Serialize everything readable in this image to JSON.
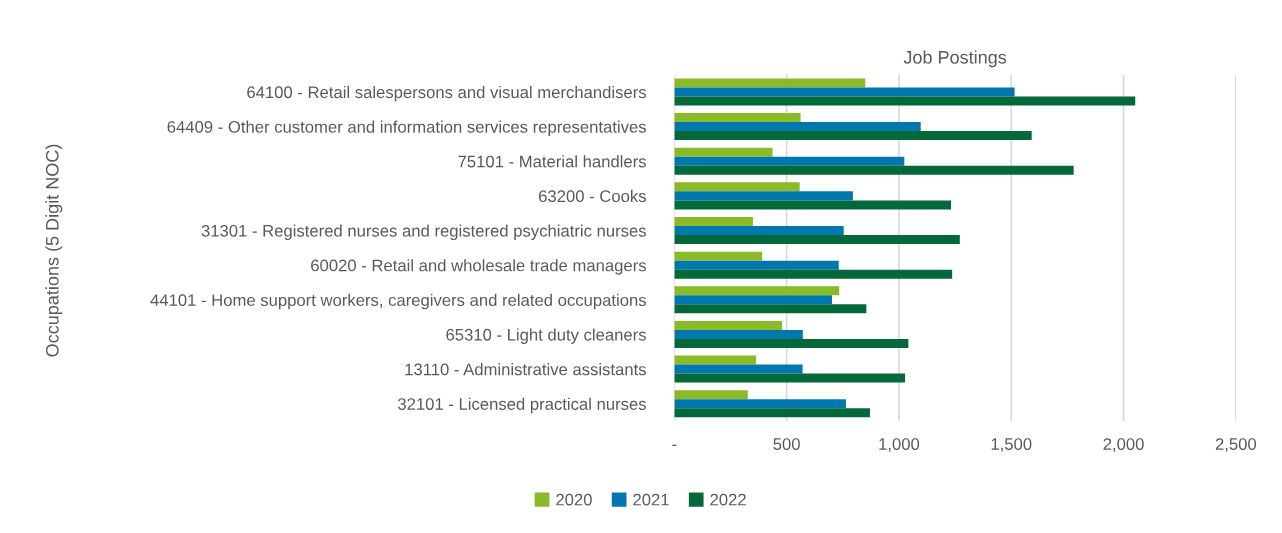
{
  "chart_data": {
    "type": "bar",
    "orientation": "horizontal",
    "xlabel": "Job Postings",
    "ylabel": "Occupations (5 Digit NOC)",
    "categories": [
      "64100 - Retail salespersons and visual merchandisers",
      "64409 - Other customer and information services representatives",
      "75101 - Material handlers",
      "63200 - Cooks",
      "31301 - Registered nurses and registered psychiatric nurses",
      "60020 - Retail and wholesale trade managers",
      "44101 - Home support workers, caregivers and related occupations",
      "65310 - Light duty cleaners",
      "13110 - Administrative assistants",
      "32101 - Licensed practical nurses"
    ],
    "series": [
      {
        "name": "2020",
        "color": "#8aba28",
        "values": [
          850,
          562,
          437,
          558,
          350,
          391,
          734,
          480,
          364,
          327
        ]
      },
      {
        "name": "2021",
        "color": "#0078ae",
        "values": [
          1515,
          1097,
          1024,
          795,
          754,
          732,
          702,
          572,
          571,
          764
        ]
      },
      {
        "name": "2022",
        "color": "#04693a",
        "values": [
          2052,
          1591,
          1778,
          1232,
          1271,
          1237,
          855,
          1042,
          1027,
          871
        ]
      }
    ],
    "xlim": [
      0,
      2500
    ],
    "xticks": [
      {
        "value": 0,
        "label": "-"
      },
      {
        "value": 500,
        "label": "500"
      },
      {
        "value": 1000,
        "label": "1,000"
      },
      {
        "value": 1500,
        "label": "1,500"
      },
      {
        "value": 2000,
        "label": "2,000"
      },
      {
        "value": 2500,
        "label": "2,500"
      }
    ],
    "grid": "x",
    "legend": "bottom"
  }
}
